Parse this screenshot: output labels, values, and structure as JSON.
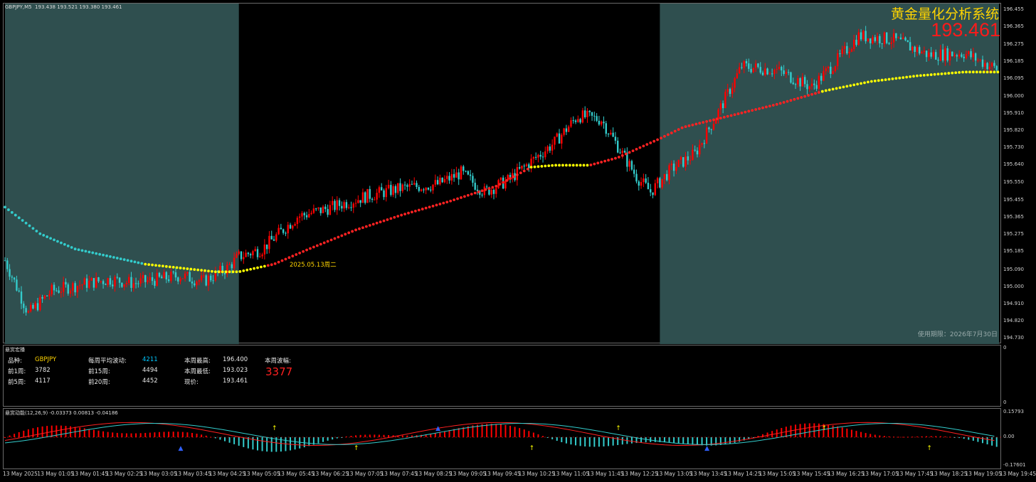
{
  "chart_header": {
    "symbol_tf": "GBPJPY,M5",
    "ohlc": "193.438 193.521 193.380 193.461"
  },
  "brand": {
    "title": "黄金量化分析系统",
    "price": "193.461",
    "expiry": "使用期限：2026年7月30日"
  },
  "session_marker": "2025.05.13周二",
  "stats": {
    "panel_title": "悬赏宏播",
    "symbol_label": "品种:",
    "symbol": "GBPJPY",
    "weekly_avg_label": "每周平均波动:",
    "weekly_avg": "4211",
    "week_high_label": "本周最高:",
    "week_high": "196.400",
    "week_range_label": "本周波幅:",
    "week_range": "3377",
    "prev1_label": "前1周:",
    "prev1": "3782",
    "prev15_label": "前15周:",
    "prev15": "4494",
    "week_low_label": "本周最低:",
    "week_low": "193.023",
    "prev5_label": "前5周:",
    "prev5": "4117",
    "prev20_label": "前20周:",
    "prev20": "4452",
    "current_label": "现价:",
    "current": "193.461",
    "scale_top": "0",
    "scale_bottom": "0"
  },
  "oscillator": {
    "label": "悬赏动能(12,26,9) -0.03373 0.00813 -0.04186",
    "scale": [
      "0.15793",
      "0.00",
      "-0.17601"
    ]
  },
  "colors": {
    "bg": "#000000",
    "session": "#2f4f4f",
    "bull": "#ff0000",
    "bear": "#33cccc",
    "ma_up": "#ff2222",
    "ma_flat": "#ffff00",
    "ma_down": "#33cccc"
  },
  "chart_data": {
    "type": "candlestick",
    "symbol": "GBPJPY",
    "timeframe": "M5",
    "ylim": [
      194.7,
      196.49
    ],
    "price_axis": [
      "196.455",
      "196.365",
      "196.275",
      "196.185",
      "196.095",
      "196.000",
      "195.910",
      "195.820",
      "195.730",
      "195.640",
      "195.550",
      "195.455",
      "195.365",
      "195.275",
      "195.185",
      "195.090",
      "195.000",
      "194.910",
      "194.820",
      "194.730"
    ],
    "time_axis": [
      "13 May 2025",
      "13 May 01:05",
      "13 May 01:45",
      "13 May 02:25",
      "13 May 03:05",
      "13 May 03:45",
      "13 May 04:25",
      "13 May 05:05",
      "13 May 05:45",
      "13 May 06:25",
      "13 May 07:05",
      "13 May 07:45",
      "13 May 08:25",
      "13 May 09:05",
      "13 May 09:45",
      "13 May 10:25",
      "13 May 11:05",
      "13 May 11:45",
      "13 May 12:25",
      "13 May 13:05",
      "13 May 13:45",
      "13 May 14:25",
      "13 May 15:05",
      "13 May 15:45",
      "13 May 16:25",
      "13 May 17:05",
      "13 May 17:45",
      "13 May 18:25",
      "13 May 19:05",
      "13 May 19:45"
    ],
    "close_path": [
      [
        0,
        195.14
      ],
      [
        10,
        194.86
      ],
      [
        20,
        194.98
      ],
      [
        35,
        195.02
      ],
      [
        45,
        195.04
      ],
      [
        55,
        195.02
      ],
      [
        65,
        195.04
      ],
      [
        75,
        195.06
      ],
      [
        85,
        195.03
      ],
      [
        95,
        195.1
      ],
      [
        100,
        195.16
      ],
      [
        110,
        195.2
      ],
      [
        125,
        195.37
      ],
      [
        140,
        195.42
      ],
      [
        155,
        195.48
      ],
      [
        170,
        195.52
      ],
      [
        185,
        195.54
      ],
      [
        195,
        195.6
      ],
      [
        205,
        195.5
      ],
      [
        215,
        195.56
      ],
      [
        235,
        195.76
      ],
      [
        245,
        195.9
      ],
      [
        255,
        195.88
      ],
      [
        262,
        195.74
      ],
      [
        270,
        195.58
      ],
      [
        276,
        195.5
      ],
      [
        285,
        195.62
      ],
      [
        295,
        195.7
      ],
      [
        305,
        195.92
      ],
      [
        315,
        196.16
      ],
      [
        330,
        196.14
      ],
      [
        345,
        196.05
      ],
      [
        355,
        196.18
      ],
      [
        365,
        196.32
      ],
      [
        380,
        196.3
      ],
      [
        395,
        196.22
      ],
      [
        410,
        196.23
      ],
      [
        425,
        196.14
      ]
    ],
    "ma_path": [
      [
        0,
        195.42
      ],
      [
        15,
        195.28
      ],
      [
        30,
        195.2
      ],
      [
        45,
        195.16
      ],
      [
        60,
        195.12
      ],
      [
        75,
        195.1
      ],
      [
        90,
        195.08
      ],
      [
        100,
        195.08
      ],
      [
        115,
        195.12
      ],
      [
        130,
        195.2
      ],
      [
        150,
        195.3
      ],
      [
        170,
        195.38
      ],
      [
        190,
        195.45
      ],
      [
        210,
        195.53
      ],
      [
        225,
        195.63
      ],
      [
        235,
        195.64
      ],
      [
        250,
        195.64
      ],
      [
        262,
        195.68
      ],
      [
        280,
        195.78
      ],
      [
        290,
        195.84
      ],
      [
        310,
        195.9
      ],
      [
        330,
        195.96
      ],
      [
        350,
        196.03
      ],
      [
        370,
        196.08
      ],
      [
        390,
        196.11
      ],
      [
        410,
        196.13
      ],
      [
        425,
        196.13
      ]
    ],
    "sessions": [
      {
        "start": 0,
        "end": 100,
        "shaded": true
      },
      {
        "start": 100,
        "end": 280,
        "shaded": false
      },
      {
        "start": 280,
        "end": 425,
        "shaded": true
      }
    ],
    "oscillator_scale": [
      0.15793,
      0.0,
      -0.17601
    ]
  }
}
